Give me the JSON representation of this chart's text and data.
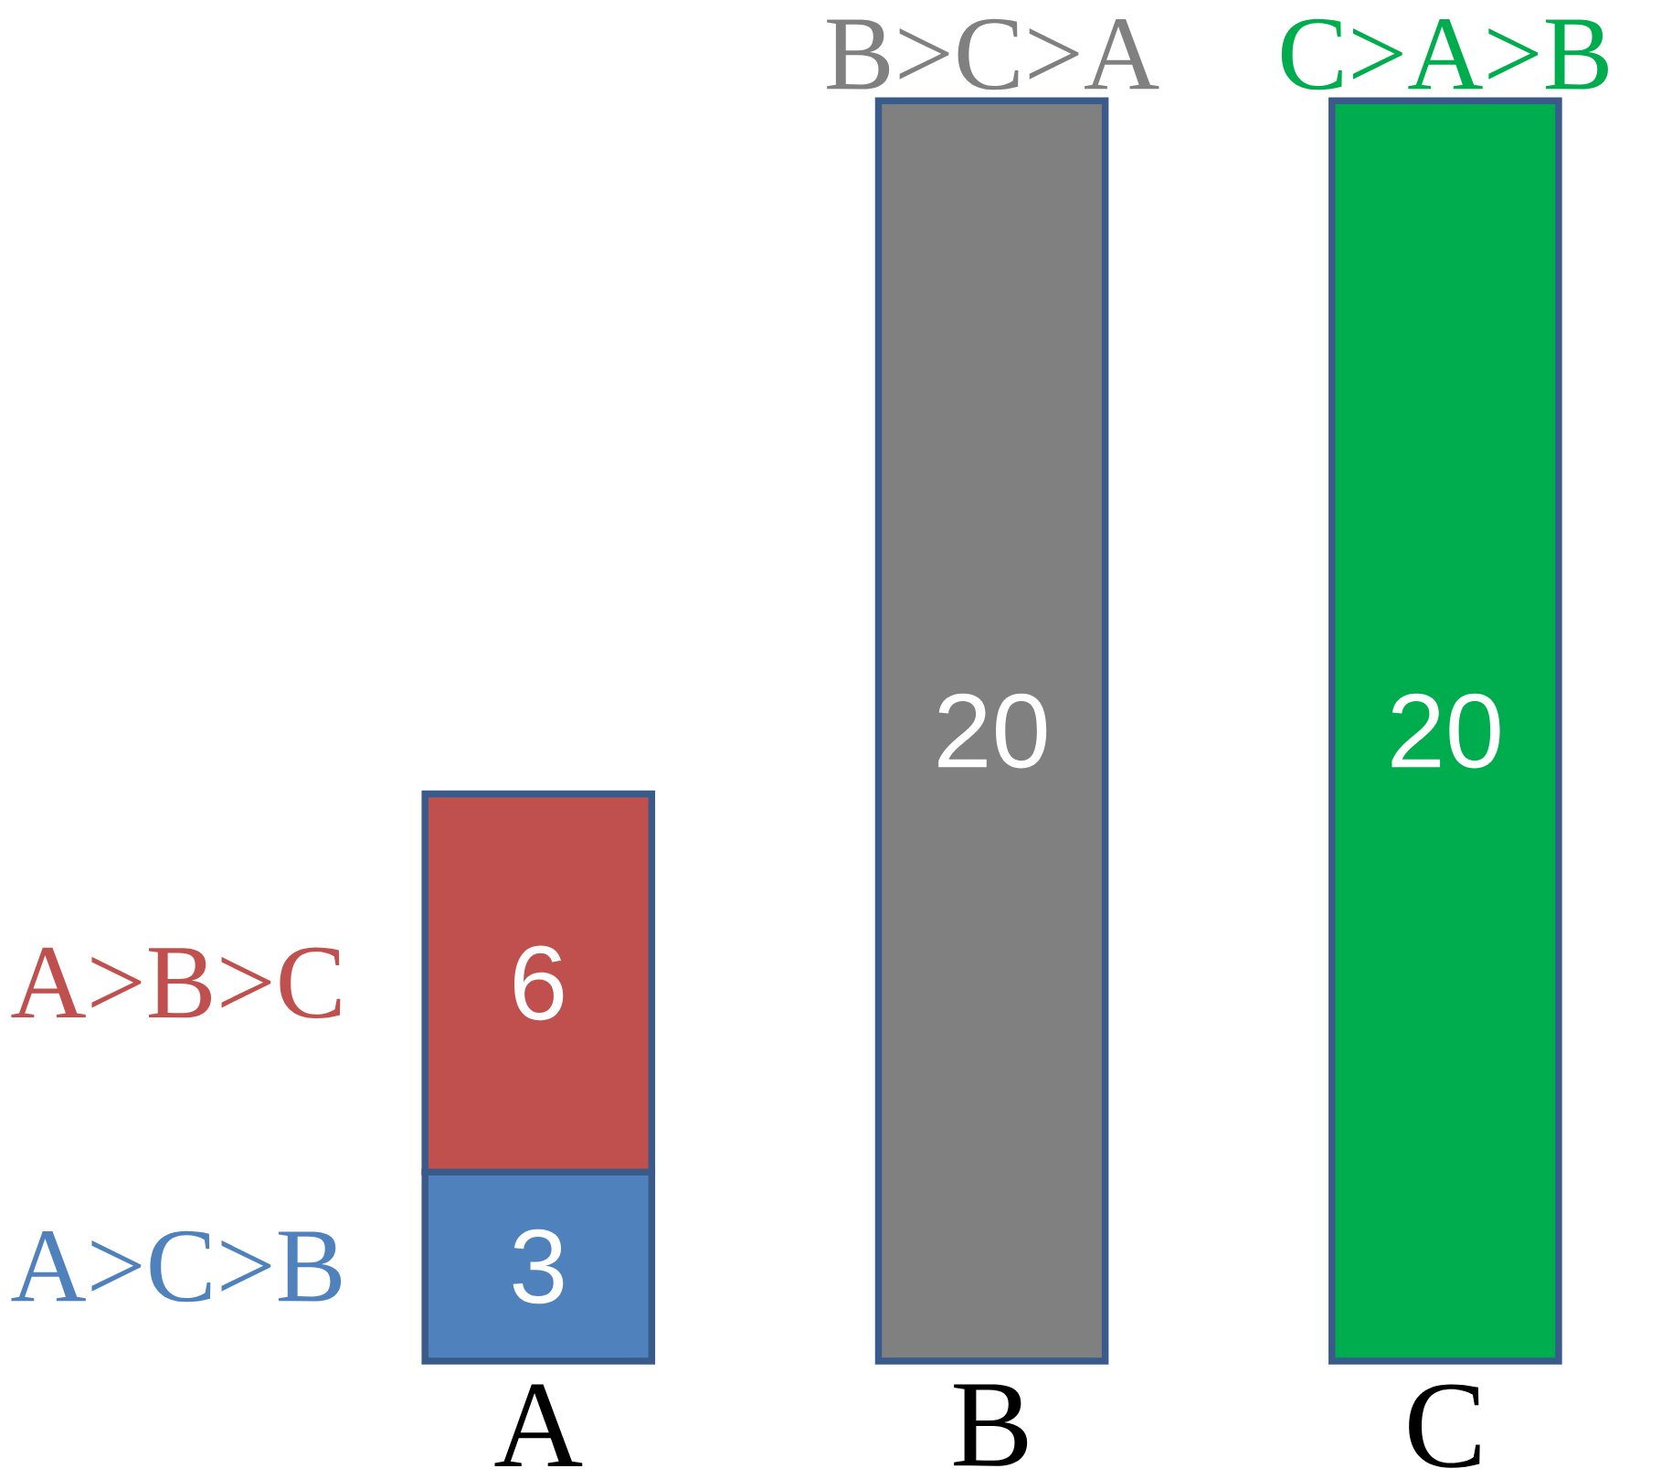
{
  "chart_data": {
    "type": "bar",
    "stacked": true,
    "data_labels": true,
    "categories": [
      "A",
      "B",
      "C"
    ],
    "series": [
      {
        "name": "A>C>B",
        "color": "#4f81bd",
        "values": [
          3,
          null,
          null
        ]
      },
      {
        "name": "A>B>C",
        "color": "#c0504d",
        "values": [
          6,
          null,
          null
        ]
      },
      {
        "name": "B>C>A",
        "color": "#808080",
        "values": [
          null,
          20,
          null
        ]
      },
      {
        "name": "C>A>B",
        "color": "#00ad4e",
        "values": [
          null,
          null,
          20
        ]
      }
    ]
  }
}
